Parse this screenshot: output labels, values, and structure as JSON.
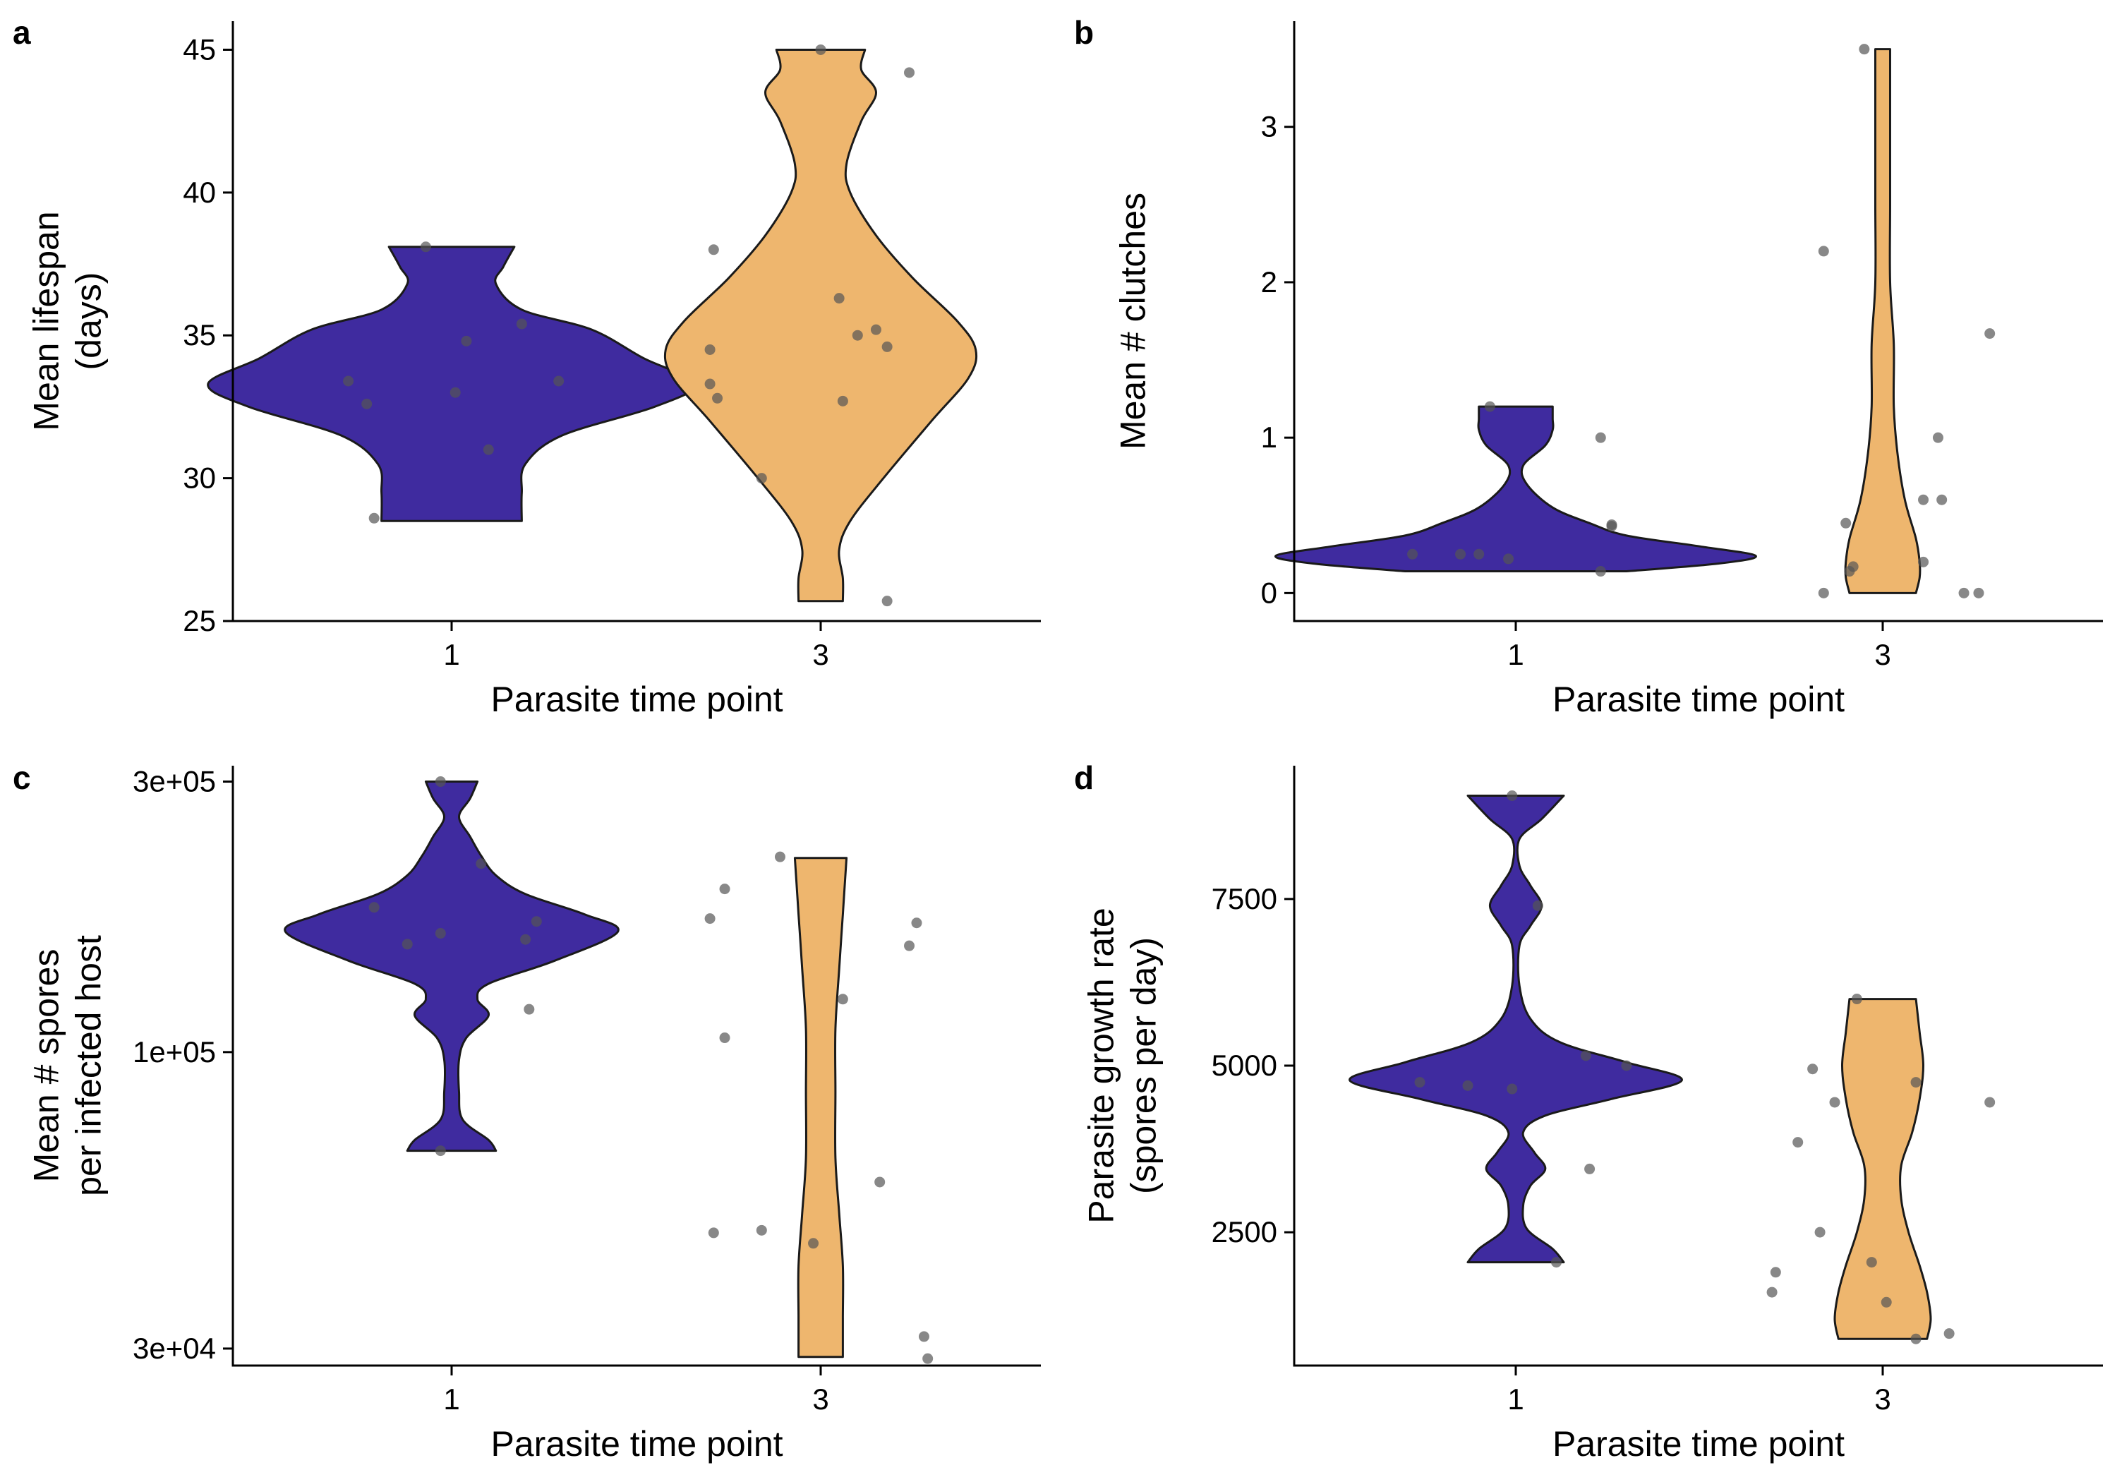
{
  "colors": {
    "timepoint_1_fill": "#3f2b9f",
    "timepoint_3_fill": "#eeb66e",
    "outline": "#1a1a1a",
    "point": "#555555"
  },
  "chart_data": [
    {
      "type": "violin",
      "panel_label": "a",
      "xlabel": "Parasite time point",
      "ylabel_lines": [
        "Mean lifespan",
        "(days)"
      ],
      "categories": [
        "1",
        "3"
      ],
      "yscale": "linear",
      "ylim": [
        25,
        46
      ],
      "yticks": [
        25,
        30,
        35,
        40,
        45
      ],
      "ytick_labels": [
        "25",
        "30",
        "35",
        "40",
        "45"
      ],
      "violins": [
        {
          "category": "1",
          "range": [
            28.5,
            38.1
          ],
          "half_width": [
            [
              28.5,
              0.19
            ],
            [
              29.5,
              0.19
            ],
            [
              30.5,
              0.2
            ],
            [
              31.5,
              0.3
            ],
            [
              32.5,
              0.55
            ],
            [
              33.3,
              0.66
            ],
            [
              34.2,
              0.52
            ],
            [
              35.2,
              0.38
            ],
            [
              35.9,
              0.19
            ],
            [
              36.8,
              0.12
            ],
            [
              37.4,
              0.14
            ],
            [
              38.1,
              0.17
            ]
          ]
        },
        {
          "category": "3",
          "range": [
            25.7,
            45.0
          ],
          "half_width": [
            [
              25.7,
              0.06
            ],
            [
              26.5,
              0.06
            ],
            [
              27.5,
              0.05
            ],
            [
              28.5,
              0.08
            ],
            [
              30.0,
              0.17
            ],
            [
              32.0,
              0.3
            ],
            [
              33.5,
              0.4
            ],
            [
              34.5,
              0.42
            ],
            [
              35.5,
              0.37
            ],
            [
              37.0,
              0.25
            ],
            [
              38.5,
              0.15
            ],
            [
              40.0,
              0.08
            ],
            [
              41.0,
              0.07
            ],
            [
              42.5,
              0.11
            ],
            [
              43.5,
              0.15
            ],
            [
              44.3,
              0.11
            ],
            [
              45.0,
              0.12
            ]
          ]
        }
      ],
      "points": [
        {
          "category": "1",
          "offset": -0.28,
          "y": 33.4
        },
        {
          "category": "1",
          "offset": -0.23,
          "y": 32.6
        },
        {
          "category": "1",
          "offset": -0.21,
          "y": 28.6
        },
        {
          "category": "1",
          "offset": -0.07,
          "y": 38.1
        },
        {
          "category": "1",
          "offset": 0.01,
          "y": 33.0
        },
        {
          "category": "1",
          "offset": 0.04,
          "y": 34.8
        },
        {
          "category": "1",
          "offset": 0.1,
          "y": 31.0
        },
        {
          "category": "1",
          "offset": 0.19,
          "y": 35.4
        },
        {
          "category": "1",
          "offset": 0.29,
          "y": 33.4
        },
        {
          "category": "3",
          "offset": -0.3,
          "y": 34.5
        },
        {
          "category": "3",
          "offset": -0.3,
          "y": 33.3
        },
        {
          "category": "3",
          "offset": -0.28,
          "y": 32.8
        },
        {
          "category": "3",
          "offset": -0.29,
          "y": 38.0
        },
        {
          "category": "3",
          "offset": -0.16,
          "y": 30.0
        },
        {
          "category": "3",
          "offset": 0.0,
          "y": 45.0
        },
        {
          "category": "3",
          "offset": 0.05,
          "y": 36.3
        },
        {
          "category": "3",
          "offset": 0.06,
          "y": 32.7
        },
        {
          "category": "3",
          "offset": 0.1,
          "y": 35.0
        },
        {
          "category": "3",
          "offset": 0.15,
          "y": 35.2
        },
        {
          "category": "3",
          "offset": 0.18,
          "y": 34.6
        },
        {
          "category": "3",
          "offset": 0.18,
          "y": 25.7
        },
        {
          "category": "3",
          "offset": 0.24,
          "y": 44.2
        }
      ]
    },
    {
      "type": "violin",
      "panel_label": "b",
      "xlabel": "Parasite time point",
      "ylabel_lines": [
        "Mean # clutches"
      ],
      "categories": [
        "1",
        "3"
      ],
      "yscale": "linear",
      "ylim": [
        -0.18,
        3.68
      ],
      "yticks": [
        0,
        1,
        2,
        3
      ],
      "ytick_labels": [
        "0",
        "1",
        "2",
        "3"
      ],
      "violins": [
        {
          "category": "1",
          "range": [
            0.14,
            1.2
          ],
          "half_width": [
            [
              0.14,
              0.3
            ],
            [
              0.19,
              0.55
            ],
            [
              0.24,
              0.65
            ],
            [
              0.3,
              0.5
            ],
            [
              0.37,
              0.3
            ],
            [
              0.45,
              0.2
            ],
            [
              0.55,
              0.1
            ],
            [
              0.7,
              0.03
            ],
            [
              0.82,
              0.02
            ],
            [
              0.95,
              0.08
            ],
            [
              1.05,
              0.1
            ],
            [
              1.12,
              0.1
            ],
            [
              1.2,
              0.1
            ]
          ]
        },
        {
          "category": "3",
          "range": [
            0.0,
            3.5
          ],
          "half_width": [
            [
              0.0,
              0.09
            ],
            [
              0.1,
              0.1
            ],
            [
              0.2,
              0.1
            ],
            [
              0.35,
              0.09
            ],
            [
              0.6,
              0.06
            ],
            [
              0.9,
              0.04
            ],
            [
              1.2,
              0.03
            ],
            [
              1.6,
              0.03
            ],
            [
              2.0,
              0.02
            ],
            [
              2.5,
              0.02
            ],
            [
              3.0,
              0.02
            ],
            [
              3.5,
              0.02
            ]
          ]
        }
      ],
      "points": [
        {
          "category": "1",
          "offset": -0.28,
          "y": 0.25
        },
        {
          "category": "1",
          "offset": -0.15,
          "y": 0.25
        },
        {
          "category": "1",
          "offset": -0.1,
          "y": 0.25
        },
        {
          "category": "1",
          "offset": -0.02,
          "y": 0.22
        },
        {
          "category": "1",
          "offset": -0.07,
          "y": 1.2
        },
        {
          "category": "1",
          "offset": 0.23,
          "y": 0.14
        },
        {
          "category": "1",
          "offset": 0.23,
          "y": 1.0
        },
        {
          "category": "1",
          "offset": 0.26,
          "y": 0.44
        },
        {
          "category": "1",
          "offset": 0.26,
          "y": 0.43
        },
        {
          "category": "3",
          "offset": -0.16,
          "y": 2.2
        },
        {
          "category": "3",
          "offset": -0.16,
          "y": 0.0
        },
        {
          "category": "3",
          "offset": -0.1,
          "y": 0.45
        },
        {
          "category": "3",
          "offset": -0.09,
          "y": 0.14
        },
        {
          "category": "3",
          "offset": -0.08,
          "y": 0.17
        },
        {
          "category": "3",
          "offset": -0.05,
          "y": 3.5
        },
        {
          "category": "3",
          "offset": 0.11,
          "y": 0.6
        },
        {
          "category": "3",
          "offset": 0.11,
          "y": 0.2
        },
        {
          "category": "3",
          "offset": 0.15,
          "y": 1.0
        },
        {
          "category": "3",
          "offset": 0.16,
          "y": 0.6
        },
        {
          "category": "3",
          "offset": 0.22,
          "y": 0.0
        },
        {
          "category": "3",
          "offset": 0.26,
          "y": 0.0
        },
        {
          "category": "3",
          "offset": 0.29,
          "y": 1.67
        }
      ]
    },
    {
      "type": "violin",
      "panel_label": "c",
      "xlabel": "Parasite time point",
      "ylabel_lines": [
        "Mean # spores",
        "per infected host"
      ],
      "categories": [
        "1",
        "3"
      ],
      "yscale": "log10",
      "ylim": [
        28000,
        320000
      ],
      "yticks": [
        30000,
        100000,
        300000
      ],
      "ytick_labels": [
        "3e+04",
        "1e+05",
        "3e+05"
      ],
      "violins": [
        {
          "category": "1",
          "range": [
            67000,
            300000
          ],
          "half_width": [
            [
              67000,
              0.12
            ],
            [
              70000,
              0.1
            ],
            [
              76000,
              0.03
            ],
            [
              85000,
              0.02
            ],
            [
              97000,
              0.02
            ],
            [
              106000,
              0.04
            ],
            [
              116000,
              0.1
            ],
            [
              124000,
              0.07
            ],
            [
              132000,
              0.1
            ],
            [
              145000,
              0.28
            ],
            [
              163000,
              0.45
            ],
            [
              175000,
              0.36
            ],
            [
              190000,
              0.2
            ],
            [
              205000,
              0.12
            ],
            [
              222000,
              0.08
            ],
            [
              240000,
              0.05
            ],
            [
              260000,
              0.02
            ],
            [
              280000,
              0.05
            ],
            [
              300000,
              0.07
            ]
          ]
        },
        {
          "category": "3",
          "range": [
            29000,
            220000
          ],
          "half_width": [
            [
              29000,
              0.06
            ],
            [
              34000,
              0.06
            ],
            [
              42000,
              0.06
            ],
            [
              52000,
              0.05
            ],
            [
              65000,
              0.04
            ],
            [
              85000,
              0.04
            ],
            [
              110000,
              0.04
            ],
            [
              140000,
              0.05
            ],
            [
              175000,
              0.06
            ],
            [
              220000,
              0.07
            ]
          ]
        }
      ],
      "points": [
        {
          "category": "1",
          "offset": -0.21,
          "y": 180000
        },
        {
          "category": "1",
          "offset": -0.12,
          "y": 155000
        },
        {
          "category": "1",
          "offset": -0.03,
          "y": 300000
        },
        {
          "category": "1",
          "offset": -0.03,
          "y": 67000
        },
        {
          "category": "1",
          "offset": -0.03,
          "y": 162000
        },
        {
          "category": "1",
          "offset": 0.08,
          "y": 215000
        },
        {
          "category": "1",
          "offset": 0.2,
          "y": 158000
        },
        {
          "category": "1",
          "offset": 0.23,
          "y": 170000
        },
        {
          "category": "1",
          "offset": 0.21,
          "y": 119000
        },
        {
          "category": "3",
          "offset": -0.3,
          "y": 172000
        },
        {
          "category": "3",
          "offset": -0.29,
          "y": 48000
        },
        {
          "category": "3",
          "offset": -0.26,
          "y": 106000
        },
        {
          "category": "3",
          "offset": -0.26,
          "y": 194000
        },
        {
          "category": "3",
          "offset": -0.16,
          "y": 48500
        },
        {
          "category": "3",
          "offset": -0.11,
          "y": 221000
        },
        {
          "category": "3",
          "offset": -0.02,
          "y": 46000
        },
        {
          "category": "3",
          "offset": 0.06,
          "y": 124000
        },
        {
          "category": "3",
          "offset": 0.16,
          "y": 59000
        },
        {
          "category": "3",
          "offset": 0.24,
          "y": 154000
        },
        {
          "category": "3",
          "offset": 0.26,
          "y": 169000
        },
        {
          "category": "3",
          "offset": 0.28,
          "y": 31500
        },
        {
          "category": "3",
          "offset": 0.29,
          "y": 28800
        }
      ]
    },
    {
      "type": "violin",
      "panel_label": "d",
      "xlabel": "Parasite time point",
      "ylabel_lines": [
        "Parasite growth rate",
        "(spores per day)"
      ],
      "categories": [
        "1",
        "3"
      ],
      "yscale": "linear",
      "ylim": [
        500,
        9500
      ],
      "yticks": [
        2500,
        5000,
        7500
      ],
      "ytick_labels": [
        "2500",
        "5000",
        "7500"
      ],
      "violins": [
        {
          "category": "1",
          "range": [
            2050,
            9050
          ],
          "half_width": [
            [
              2050,
              0.13
            ],
            [
              2250,
              0.1
            ],
            [
              2550,
              0.03
            ],
            [
              2900,
              0.02
            ],
            [
              3200,
              0.04
            ],
            [
              3450,
              0.08
            ],
            [
              3700,
              0.05
            ],
            [
              4000,
              0.02
            ],
            [
              4250,
              0.08
            ],
            [
              4500,
              0.26
            ],
            [
              4780,
              0.45
            ],
            [
              5050,
              0.3
            ],
            [
              5350,
              0.12
            ],
            [
              5700,
              0.04
            ],
            [
              6200,
              0.01
            ],
            [
              6800,
              0.01
            ],
            [
              7100,
              0.04
            ],
            [
              7400,
              0.07
            ],
            [
              7700,
              0.04
            ],
            [
              8000,
              0.01
            ],
            [
              8400,
              0.01
            ],
            [
              8700,
              0.07
            ],
            [
              9050,
              0.13
            ]
          ]
        },
        {
          "category": "3",
          "range": [
            900,
            6000
          ],
          "half_width": [
            [
              900,
              0.12
            ],
            [
              1200,
              0.13
            ],
            [
              1600,
              0.12
            ],
            [
              2000,
              0.1
            ],
            [
              2500,
              0.07
            ],
            [
              3000,
              0.05
            ],
            [
              3500,
              0.05
            ],
            [
              4000,
              0.08
            ],
            [
              4500,
              0.1
            ],
            [
              5000,
              0.11
            ],
            [
              5500,
              0.1
            ],
            [
              6000,
              0.09
            ]
          ]
        }
      ],
      "points": [
        {
          "category": "1",
          "offset": -0.26,
          "y": 4750
        },
        {
          "category": "1",
          "offset": -0.13,
          "y": 4700
        },
        {
          "category": "1",
          "offset": -0.01,
          "y": 4650
        },
        {
          "category": "1",
          "offset": -0.01,
          "y": 9050
        },
        {
          "category": "1",
          "offset": 0.06,
          "y": 7400
        },
        {
          "category": "1",
          "offset": 0.11,
          "y": 2050
        },
        {
          "category": "1",
          "offset": 0.19,
          "y": 5150
        },
        {
          "category": "1",
          "offset": 0.2,
          "y": 3450
        },
        {
          "category": "1",
          "offset": 0.3,
          "y": 5000
        },
        {
          "category": "3",
          "offset": -0.3,
          "y": 1600
        },
        {
          "category": "3",
          "offset": -0.29,
          "y": 1900
        },
        {
          "category": "3",
          "offset": -0.23,
          "y": 3850
        },
        {
          "category": "3",
          "offset": -0.19,
          "y": 4950
        },
        {
          "category": "3",
          "offset": -0.17,
          "y": 2500
        },
        {
          "category": "3",
          "offset": -0.13,
          "y": 4450
        },
        {
          "category": "3",
          "offset": -0.07,
          "y": 6000
        },
        {
          "category": "3",
          "offset": -0.03,
          "y": 2050
        },
        {
          "category": "3",
          "offset": 0.01,
          "y": 1450
        },
        {
          "category": "3",
          "offset": 0.09,
          "y": 900
        },
        {
          "category": "3",
          "offset": 0.09,
          "y": 4750
        },
        {
          "category": "3",
          "offset": 0.18,
          "y": 980
        },
        {
          "category": "3",
          "offset": 0.29,
          "y": 4450
        }
      ]
    }
  ]
}
